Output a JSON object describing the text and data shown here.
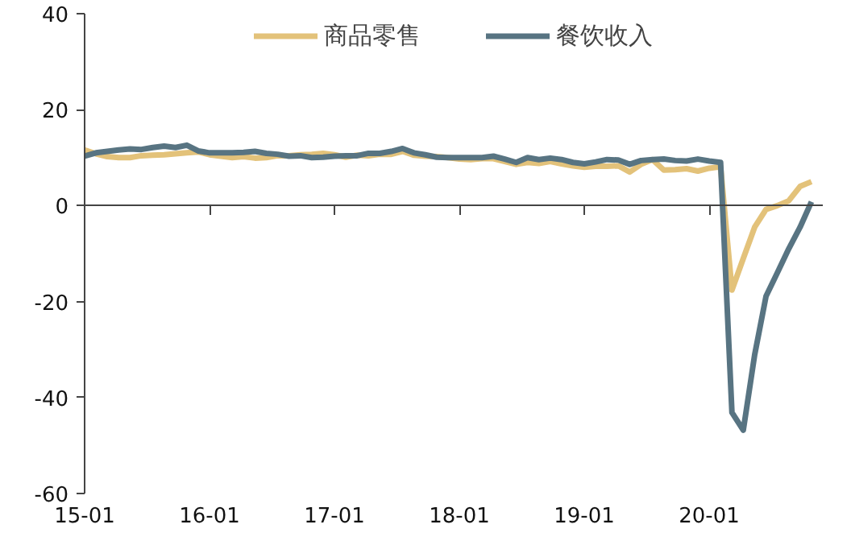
{
  "chart_data": {
    "type": "line",
    "categories": [
      "15-01",
      null,
      null,
      null,
      null,
      null,
      null,
      null,
      null,
      null,
      null,
      "16-01",
      null,
      null,
      null,
      null,
      null,
      null,
      null,
      null,
      null,
      null,
      "17-01",
      null,
      null,
      null,
      null,
      null,
      null,
      null,
      null,
      null,
      null,
      "18-01",
      null,
      null,
      null,
      null,
      null,
      null,
      null,
      null,
      null,
      null,
      "19-01",
      null,
      null,
      null,
      null,
      null,
      null,
      null,
      null,
      null,
      null,
      "20-01",
      null,
      null,
      null,
      null,
      null,
      null,
      null,
      null,
      null
    ],
    "series": [
      {
        "name": "商品零售",
        "color": "#e3c27a",
        "values": [
          11.6,
          10.8,
          10.2,
          10.0,
          10.0,
          10.4,
          10.5,
          10.6,
          10.8,
          11.0,
          11.2,
          10.6,
          10.3,
          10.0,
          10.2,
          9.9,
          10.0,
          10.4,
          10.4,
          10.6,
          10.7,
          10.9,
          10.6,
          10.1,
          10.5,
          10.4,
          10.7,
          10.7,
          11.3,
          10.5,
          10.3,
          10.2,
          10.0,
          9.7,
          9.6,
          9.8,
          9.8,
          9.2,
          8.6,
          9.0,
          8.8,
          9.2,
          8.7,
          8.3,
          8.0,
          8.2,
          8.2,
          8.3,
          7.0,
          8.6,
          9.6,
          7.4,
          7.5,
          7.7,
          7.2,
          7.8,
          8.1,
          -17.6,
          -11,
          -4.5,
          -0.8,
          0,
          1,
          4,
          5
        ]
      },
      {
        "name": "餐饮收入",
        "color": "#587482",
        "values": [
          10.3,
          11.0,
          11.3,
          11.6,
          11.8,
          11.7,
          12.1,
          12.4,
          12.1,
          12.6,
          11.4,
          11.0,
          11.0,
          11.0,
          11.1,
          11.3,
          10.9,
          10.7,
          10.3,
          10.4,
          10.0,
          10.1,
          10.3,
          10.4,
          10.4,
          10.9,
          10.9,
          11.3,
          11.9,
          11.0,
          10.6,
          10.1,
          10.0,
          10.0,
          10.0,
          10.0,
          10.3,
          9.7,
          9.0,
          10.0,
          9.6,
          9.9,
          9.6,
          9.0,
          8.7,
          9.1,
          9.6,
          9.5,
          8.6,
          9.4,
          9.6,
          9.7,
          9.4,
          9.3,
          9.7,
          9.3,
          9.0,
          -43.1,
          -46.8,
          -31.1,
          -18.9,
          -14,
          -9,
          -4.5,
          0.8
        ]
      }
    ],
    "ylim": [
      -60,
      40
    ],
    "yticks": [
      -60,
      -40,
      -20,
      0,
      20,
      40
    ],
    "legend": "top",
    "line_style": "solid",
    "marker": "none"
  }
}
